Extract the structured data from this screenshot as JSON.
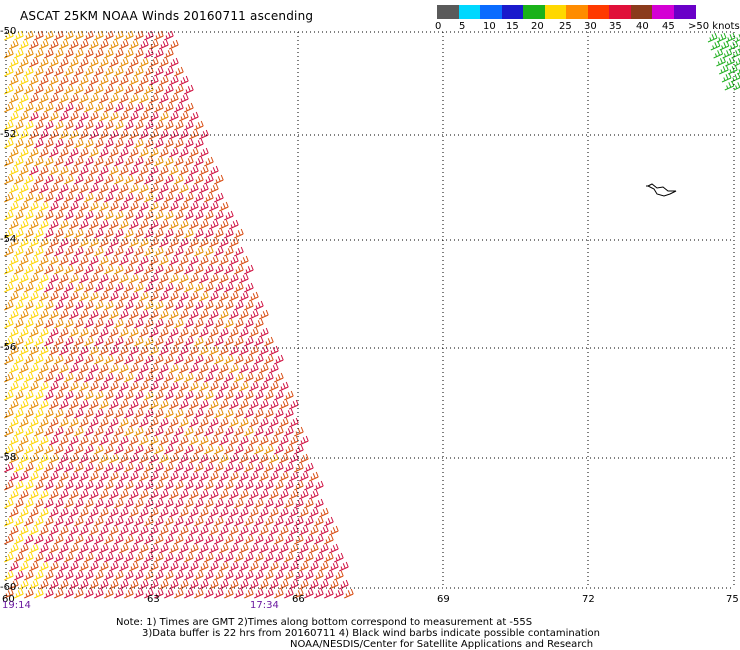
{
  "title": "ASCAT 25KM NOAA Winds 20160711 ascending",
  "colorbar": {
    "labels": [
      "0",
      "5",
      "10",
      "15",
      "20",
      "25",
      "30",
      "35",
      "40",
      "45",
      ">50 knots"
    ],
    "colors": [
      "#5a5a5a",
      "#00d8ff",
      "#0a6cff",
      "#1a1acc",
      "#1ab21a",
      "#ffd800",
      "#ff8c00",
      "#ff3a00",
      "#e0103a",
      "#8b3b1c",
      "#d400d4",
      "#6a00c8"
    ]
  },
  "lat_labels": [
    "-50",
    "-52",
    "-54",
    "-56",
    "-58",
    "-60"
  ],
  "lon_labels": [
    "60",
    "63",
    "66",
    "69",
    "72",
    "75"
  ],
  "time_labels": [
    "19:14",
    "17:34"
  ],
  "notes": {
    "line1": "Note: 1) Times are GMT 2)Times along bottom correspond to measurement at -55S",
    "line2": "3)Data buffer is 22 hrs from 20160711 4) Black wind barbs indicate possible contamination",
    "line3": "NOAA/NESDIS/Center for Satellite Applications and Research"
  },
  "barb_colors": {
    "yellow": "#ffd400",
    "orange": "#e58a00",
    "red_orange": "#d84a10",
    "crimson": "#d01040",
    "green": "#22b022",
    "black": "#000000"
  }
}
